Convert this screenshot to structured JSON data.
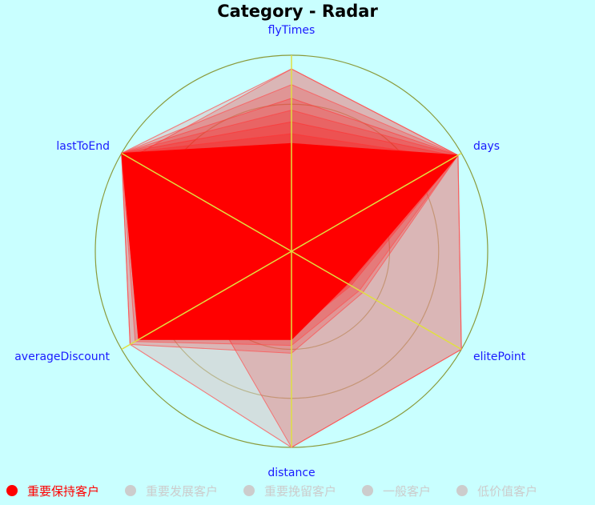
{
  "chart_data": {
    "type": "radar",
    "title": "Category - Radar",
    "indicators": [
      "flyTimes",
      "days",
      "elitePoint",
      "distance",
      "averageDiscount",
      "lastToEnd"
    ],
    "rings": 4,
    "series": [
      {
        "name": "重要保持客户",
        "selected": true,
        "color": "#ff0000"
      },
      {
        "name": "重要发展客户",
        "selected": false,
        "color": "#cccccc"
      },
      {
        "name": "重要挽留客户",
        "selected": false,
        "color": "#cccccc"
      },
      {
        "name": "一般客户",
        "selected": false,
        "color": "#cccccc"
      },
      {
        "name": "低价值客户",
        "selected": false,
        "color": "#cccccc"
      }
    ],
    "envelope_max": [
      0.93,
      0.98,
      1.0,
      1.0,
      0.95,
      1.0
    ],
    "core_typical": [
      0.55,
      0.98,
      0.33,
      0.45,
      0.9,
      1.0
    ],
    "samples": [
      [
        0.93,
        0.98,
        1.0,
        1.0,
        0.5,
        0.95
      ],
      [
        0.78,
        0.98,
        0.42,
        0.52,
        0.95,
        1.0
      ],
      [
        0.66,
        0.97,
        0.33,
        0.45,
        0.9,
        1.0
      ],
      [
        0.5,
        0.98,
        0.28,
        0.4,
        0.8,
        1.0
      ],
      [
        0.4,
        0.96,
        0.25,
        0.35,
        0.6,
        1.0
      ],
      [
        0.6,
        0.95,
        0.3,
        0.38,
        0.7,
        1.0
      ],
      [
        0.72,
        0.98,
        0.35,
        0.42,
        0.85,
        1.0
      ],
      [
        0.45,
        0.9,
        0.26,
        0.36,
        0.55,
        1.0
      ],
      [
        0.35,
        0.85,
        0.22,
        0.3,
        0.45,
        1.0
      ],
      [
        0.85,
        0.98,
        0.4,
        0.48,
        0.92,
        1.0
      ],
      [
        0.3,
        0.8,
        0.2,
        0.28,
        0.4,
        1.0
      ],
      [
        0.55,
        0.98,
        0.34,
        0.44,
        0.75,
        1.0
      ]
    ],
    "colors": {
      "background": "#c9ffff",
      "ring": "#8a9a3a",
      "axis_line": "#e0e040",
      "axis_label": "#1a1aff",
      "selected_fill": "#ff0000",
      "unselected": "#cccccc"
    }
  }
}
